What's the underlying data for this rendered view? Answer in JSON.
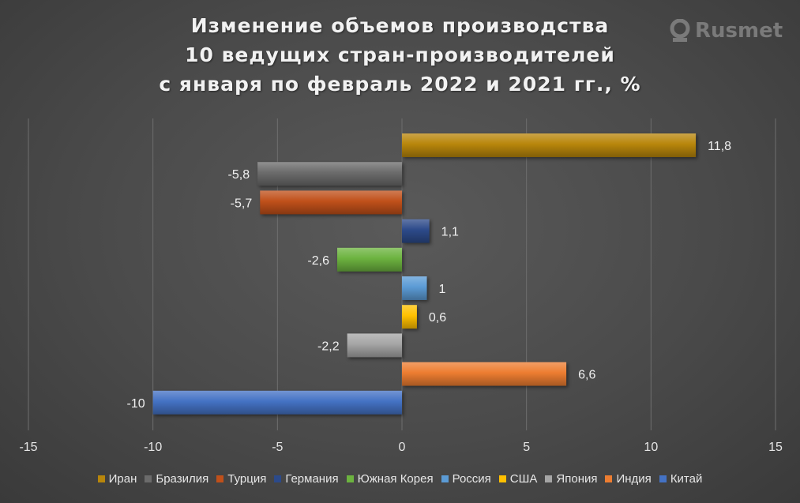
{
  "title": {
    "line1": "Изменение объемов производства",
    "line2": "10 ведущих стран-производителей",
    "line3": "с января по февраль 2022 и 2021 гг., %"
  },
  "logo": {
    "text": "Rusmet"
  },
  "chart_data": {
    "type": "bar",
    "orientation": "horizontal",
    "categories": [
      "Иран",
      "Бразилия",
      "Турция",
      "Германия",
      "Южная Корея",
      "Россия",
      "США",
      "Япония",
      "Индия",
      "Китай"
    ],
    "values": [
      11.8,
      -5.8,
      -5.7,
      1.1,
      -2.6,
      1,
      0.6,
      -2.2,
      6.6,
      -10
    ],
    "value_labels": [
      "11,8",
      "-5,8",
      "-5,7",
      "1,1",
      "-2,6",
      "1",
      "0,6",
      "-2,2",
      "6,6",
      "-10"
    ],
    "colors": [
      "#b8860b",
      "#6b6b6b",
      "#c0501a",
      "#2c4a8a",
      "#6cb33f",
      "#5b9bd5",
      "#ffc000",
      "#a5a5a5",
      "#ed7d31",
      "#4472c4"
    ],
    "xlim": [
      -15,
      15
    ],
    "xticks": [
      -15,
      -10,
      -5,
      0,
      5,
      10,
      15
    ],
    "grid": true,
    "legend_position": "bottom"
  }
}
